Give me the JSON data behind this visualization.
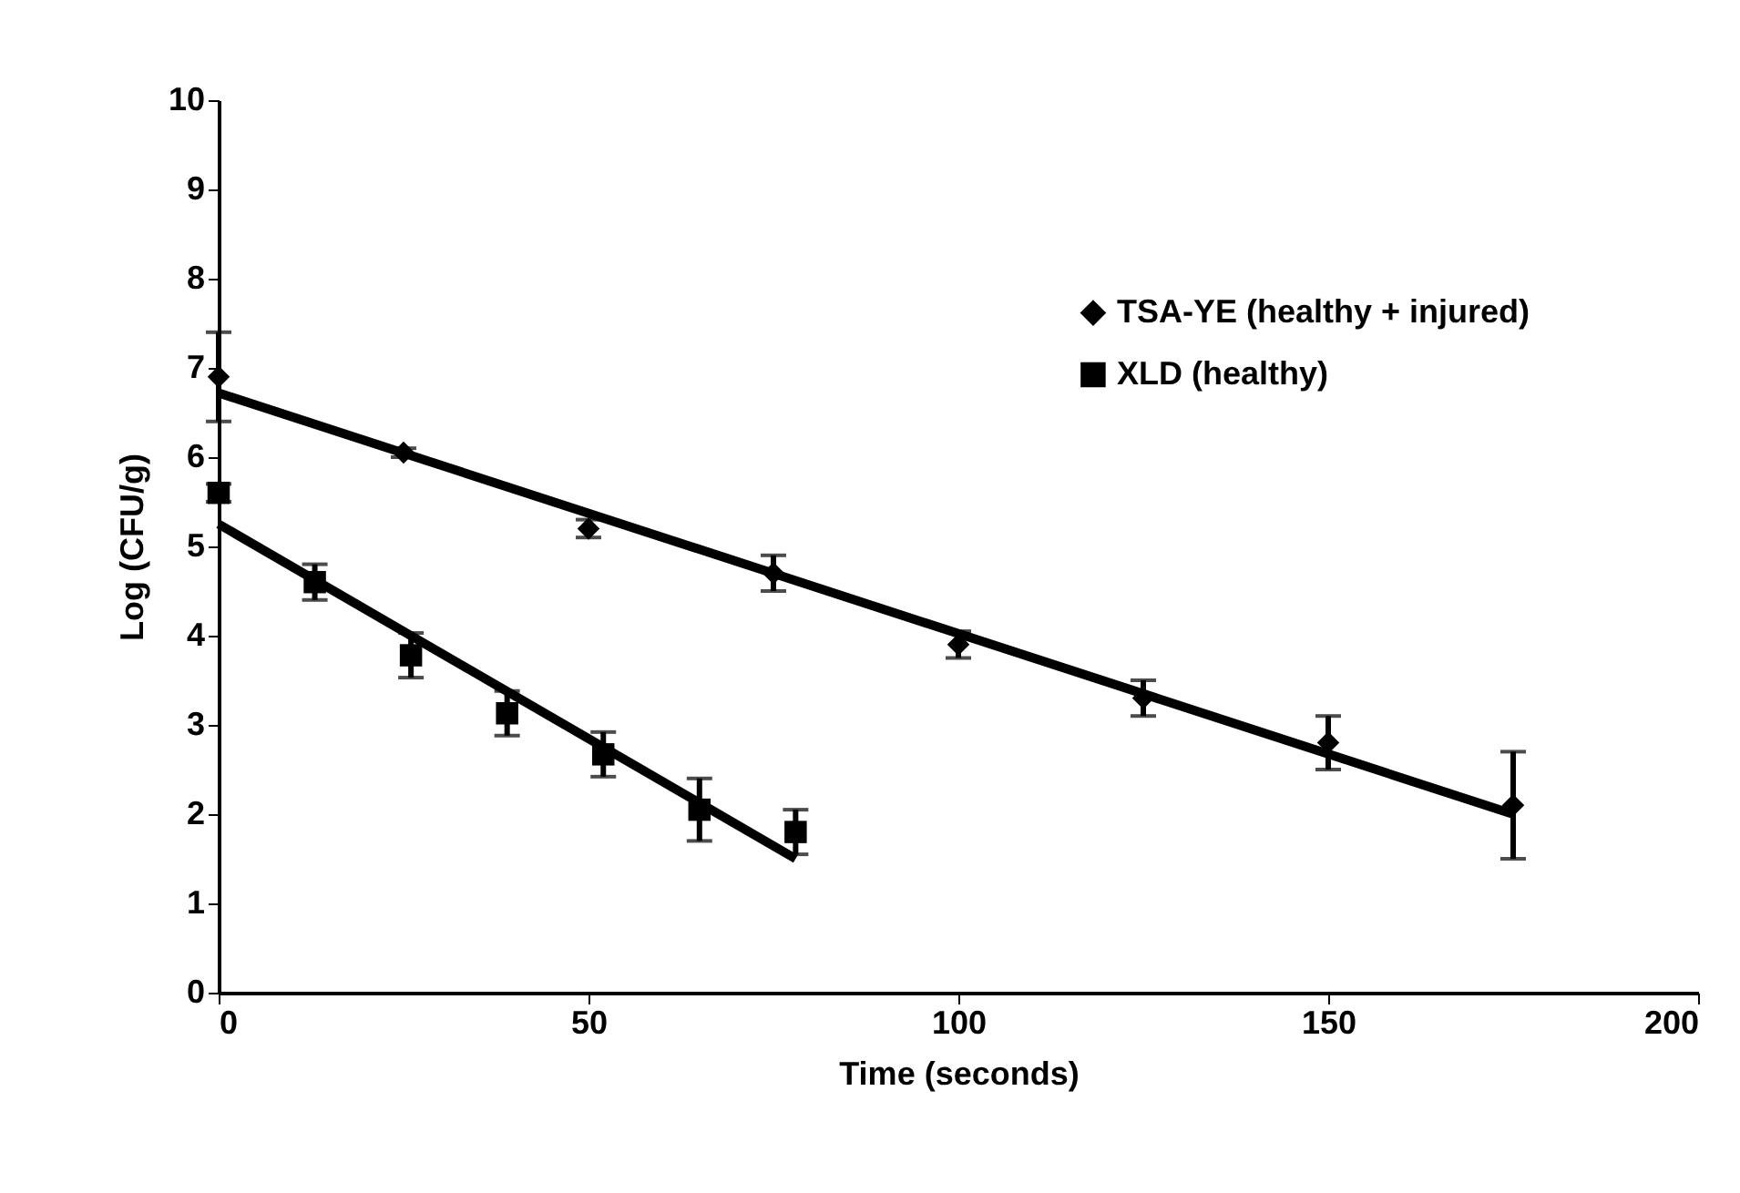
{
  "chart_data": {
    "type": "scatter",
    "xlabel": "Time (seconds)",
    "ylabel": "Log (CFU/g)",
    "xlim": [
      0,
      200
    ],
    "xticks": [
      0,
      50,
      100,
      150,
      200
    ],
    "ylim": [
      0,
      10
    ],
    "yticks": [
      0,
      1,
      2,
      3,
      4,
      5,
      6,
      7,
      8,
      9,
      10
    ],
    "grid": false,
    "legend": "right",
    "series": [
      {
        "name": "TSA-YE (healthy + injured)",
        "type": "scatter",
        "marker": "diamond",
        "color": "#000000",
        "x": [
          0,
          25,
          50,
          75,
          100,
          125,
          150,
          175
        ],
        "values": [
          6.9,
          6.05,
          5.2,
          4.7,
          3.9,
          3.3,
          2.8,
          2.1
        ],
        "errors": [
          0.5,
          0.05,
          0.1,
          0.2,
          0.15,
          0.2,
          0.3,
          0.6
        ]
      },
      {
        "name": "XLD (healthy)",
        "type": "scatter",
        "marker": "square",
        "color": "#000000",
        "x": [
          0,
          13,
          26,
          39,
          52,
          65,
          78
        ],
        "values": [
          5.6,
          4.6,
          3.78,
          3.13,
          2.67,
          2.05,
          1.8
        ],
        "errors": [
          0.1,
          0.2,
          0.25,
          0.25,
          0.25,
          0.35,
          0.25
        ]
      },
      {
        "type": "line",
        "marker": "none",
        "color": "#000000",
        "x": [
          0,
          175
        ],
        "values": [
          6.72,
          2.0
        ]
      },
      {
        "type": "line",
        "marker": "none",
        "color": "#000000",
        "x": [
          0,
          78
        ],
        "values": [
          5.25,
          1.5
        ]
      }
    ]
  }
}
